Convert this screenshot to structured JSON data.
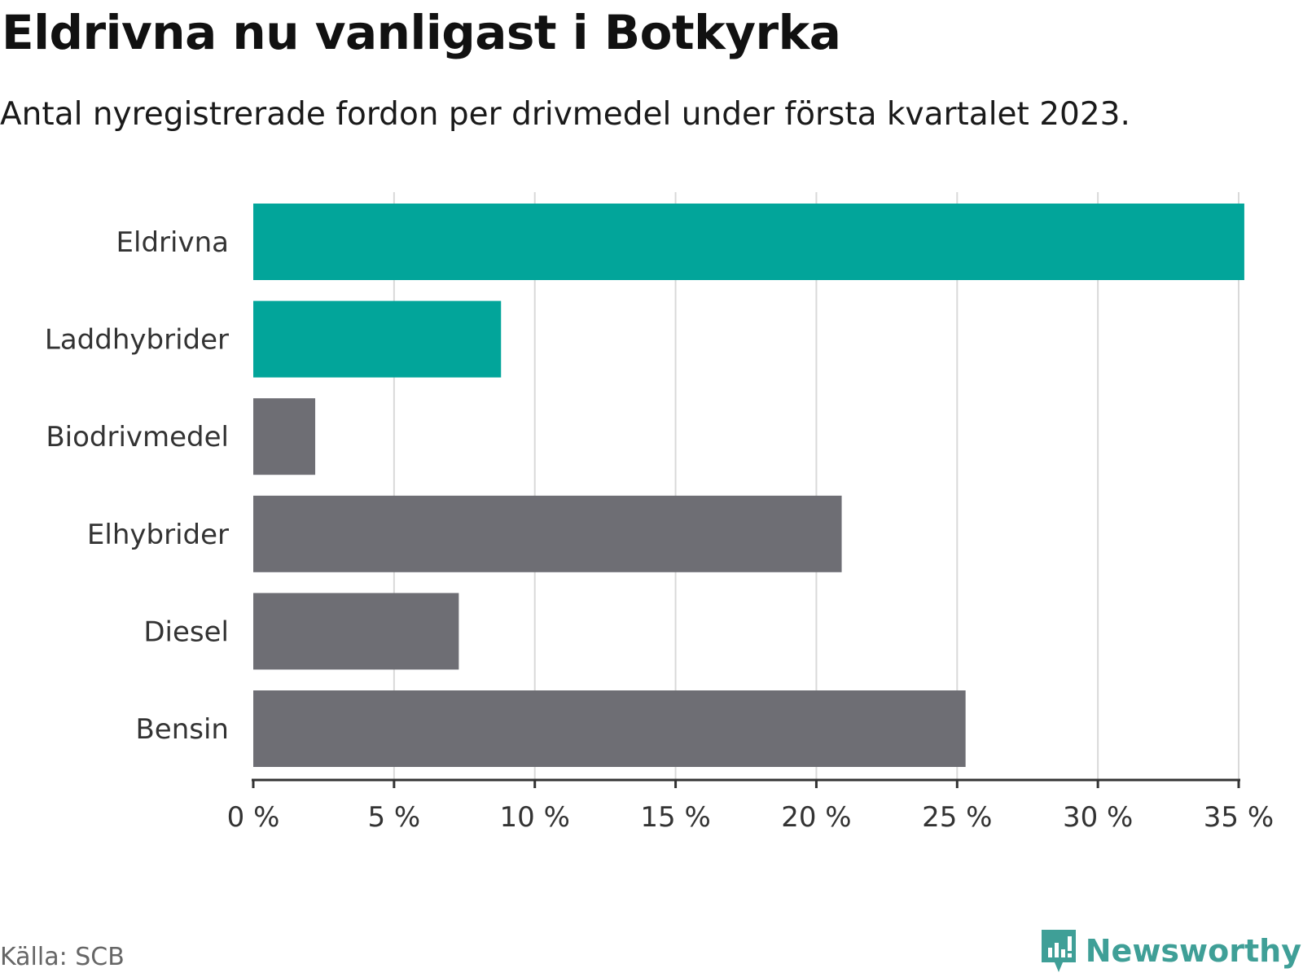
{
  "header": {
    "title": "Eldrivna nu vanligast i Botkyrka",
    "subtitle": "Antal nyregistrerade fordon per drivmedel under första kvartalet 2023."
  },
  "footer": {
    "source": "Källa: SCB",
    "brand": "Newsworthy"
  },
  "colors": {
    "highlight": "#02a59a",
    "default": "#6e6e74",
    "grid": "#d9d9d9",
    "axis": "#333333",
    "brand": "#3f9f97"
  },
  "chart_data": {
    "type": "bar",
    "orientation": "horizontal",
    "title": "Eldrivna nu vanligast i Botkyrka",
    "subtitle": "Antal nyregistrerade fordon per drivmedel under första kvartalet 2023.",
    "xlabel": "",
    "ylabel": "",
    "xlim": [
      0,
      35
    ],
    "x_ticks": [
      0,
      5,
      10,
      15,
      20,
      25,
      30,
      35
    ],
    "x_tick_labels": [
      "0 %",
      "5 %",
      "10 %",
      "15 %",
      "20 %",
      "25 %",
      "30 %",
      "35 %"
    ],
    "grid": true,
    "categories": [
      "Eldrivna",
      "Laddhybrider",
      "Biodrivmedel",
      "Elhybrider",
      "Diesel",
      "Bensin"
    ],
    "values": [
      35.2,
      8.8,
      2.2,
      20.9,
      7.3,
      25.3
    ],
    "highlighted": [
      true,
      true,
      false,
      false,
      false,
      false
    ],
    "unit": "%"
  }
}
